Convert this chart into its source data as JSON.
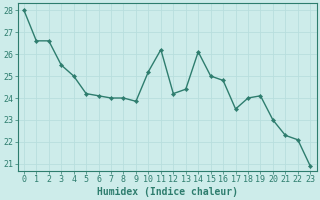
{
  "x": [
    0,
    1,
    2,
    3,
    4,
    5,
    6,
    7,
    8,
    9,
    10,
    11,
    12,
    13,
    14,
    15,
    16,
    17,
    18,
    19,
    20,
    21,
    22,
    23
  ],
  "y": [
    28.0,
    26.6,
    26.6,
    25.5,
    25.0,
    24.2,
    24.1,
    24.0,
    24.0,
    23.85,
    25.2,
    26.2,
    24.2,
    24.4,
    26.1,
    25.0,
    24.8,
    23.5,
    24.0,
    24.1,
    23.0,
    22.3,
    22.1,
    20.9
  ],
  "line_color": "#2e7d6e",
  "marker": "D",
  "marker_size": 2.2,
  "line_width": 1.0,
  "bg_color": "#cdecea",
  "grid_color": "#b8dedd",
  "xlabel": "Humidex (Indice chaleur)",
  "xlabel_fontsize": 7,
  "ylim_min": 20.7,
  "ylim_max": 28.3,
  "xlim_min": -0.5,
  "xlim_max": 23.5,
  "yticks": [
    21,
    22,
    23,
    24,
    25,
    26,
    27,
    28
  ],
  "xticks": [
    0,
    1,
    2,
    3,
    4,
    5,
    6,
    7,
    8,
    9,
    10,
    11,
    12,
    13,
    14,
    15,
    16,
    17,
    18,
    19,
    20,
    21,
    22,
    23
  ],
  "tick_fontsize": 6,
  "spine_color": "#2e7d6e"
}
